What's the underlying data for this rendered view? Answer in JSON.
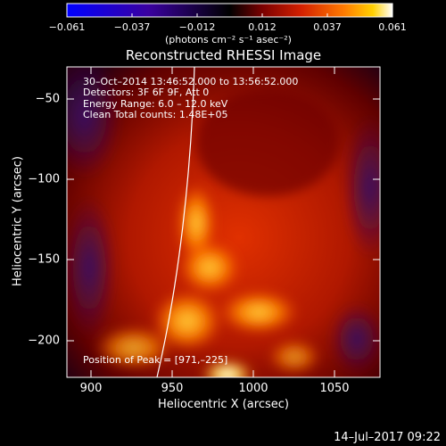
{
  "colorbar": {
    "ticks": [
      "−0.061",
      "−0.037",
      "−0.012",
      "0.012",
      "0.037",
      "0.061"
    ],
    "units": "(photons cm⁻² s⁻¹ asec⁻²)",
    "gradient": [
      "#0000ff",
      "#3a00a0",
      "#000000",
      "#7a0000",
      "#d42000",
      "#ff7a00",
      "#ffd000",
      "#ffffff"
    ]
  },
  "plot": {
    "title": "Reconstructed RHESSI Image",
    "xlabel": "Heliocentric X (arcsec)",
    "ylabel": "Heliocentric Y (arcsec)",
    "xticks": [
      "900",
      "950",
      "1000",
      "1050"
    ],
    "yticks": [
      "−50",
      "−100",
      "−150",
      "−200"
    ],
    "xrange": [
      885,
      1078
    ],
    "yrange": [
      -222,
      -30
    ]
  },
  "annotations": {
    "time": "30–Oct–2014 13:46:52.000 to 13:56:52.000",
    "detectors": "Detectors: 3F 6F 9F, Att 0",
    "energy": "Energy Range: 6.0 – 12.0 keV",
    "clean": "Clean     Total counts: 1.48E+05",
    "peak": "Position of Peak = [971,–225]"
  },
  "footer": {
    "date": "14–Jul–2017 09:22"
  }
}
